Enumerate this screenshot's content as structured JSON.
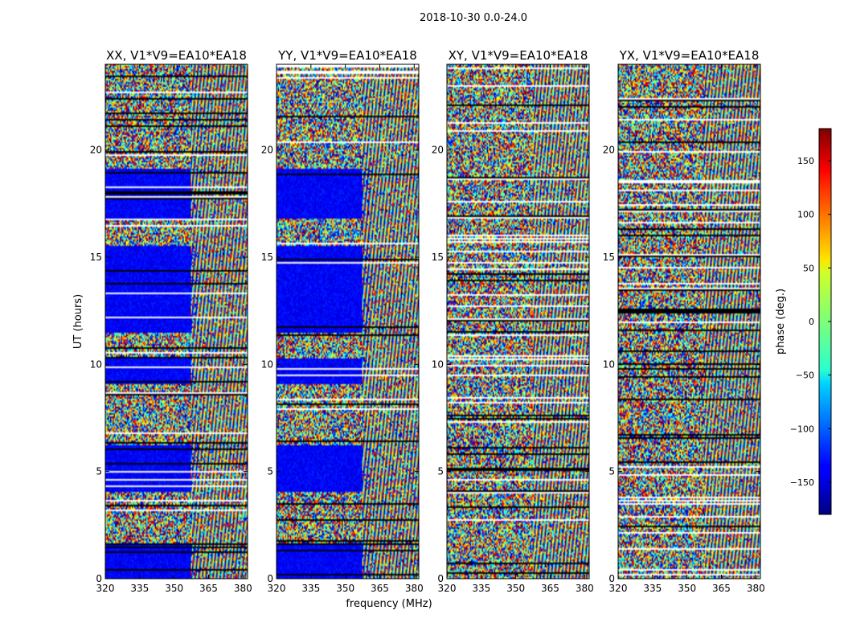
{
  "figure": {
    "suptitle": "2018-10-30 0.0-24.0"
  },
  "chart_data": {
    "type": "heatmap",
    "shared": {
      "xlabel": "frequency (MHz)",
      "ylabel": "UT (hours)",
      "xlim": [
        320,
        382
      ],
      "ylim": [
        0,
        24
      ],
      "xticks": [
        320,
        335,
        350,
        365,
        380
      ],
      "yticks": [
        0,
        5,
        10,
        15,
        20
      ],
      "colormap": "jet"
    },
    "panels": [
      {
        "title": "XX, V1*V9=EA10*EA18",
        "style": "parallel"
      },
      {
        "title": "YY, V1*V9=EA10*EA18",
        "style": "parallel"
      },
      {
        "title": "XY, V1*V9=EA10*EA18",
        "style": "cross"
      },
      {
        "title": "YX, V1*V9=EA10*EA18",
        "style": "cross"
      }
    ],
    "colorbar": {
      "label": "phase (deg.)",
      "range": [
        -180,
        180
      ],
      "ticks": [
        150,
        100,
        50,
        0,
        -50,
        -100,
        -150
      ],
      "tick_labels": [
        "150",
        "100",
        "50",
        "0",
        "−50",
        "−100",
        "−150"
      ]
    }
  }
}
